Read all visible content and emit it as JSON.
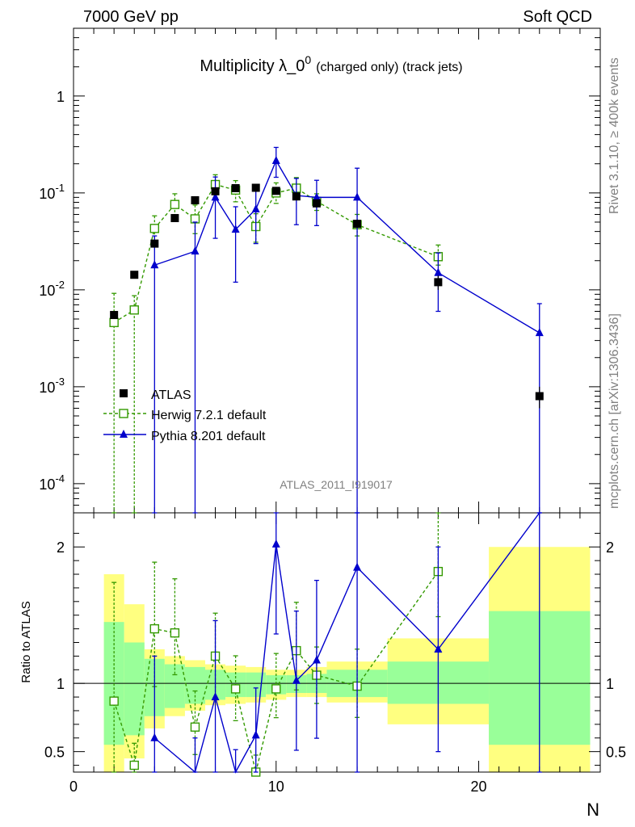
{
  "header": {
    "left": "7000 GeV pp",
    "right": "Soft QCD"
  },
  "side_labels": {
    "top": "Rivet 3.1.10, ≥ 400k events",
    "bottom": "mcplots.cern.ch [arXiv:1306.3436]"
  },
  "chart_data": {
    "type": "scatter",
    "title": "Multiplicity λ_0",
    "title_superscript": "0",
    "title_suffix": "(charged only) (track jets)",
    "watermark": "ATLAS_2011_I919017",
    "xlabel": "N",
    "ylabel_ratio": "Ratio to ATLAS",
    "xlim": [
      0,
      26
    ],
    "ylim_main": [
      5e-05,
      5
    ],
    "ylim_ratio": [
      0.35,
      2.25
    ],
    "log_y_main": true,
    "x_ticks": [
      "0",
      "10",
      "20"
    ],
    "y_ticks_main": [
      "10",
      "10",
      "10",
      "10",
      "1"
    ],
    "y_ticks_main_exponents": [
      "-4",
      "-3",
      "-2",
      "-1",
      ""
    ],
    "y_ticks_ratio": [
      "0.5",
      "1",
      "2"
    ],
    "legend_position": "lower-left",
    "series": [
      {
        "name": "ATLAS",
        "style": "data",
        "color": "#000000",
        "x": [
          2,
          3,
          4,
          5,
          6,
          7,
          8,
          9,
          10,
          11,
          12,
          14,
          18,
          23
        ],
        "y": [
          0.0055,
          0.0143,
          0.03,
          0.055,
          0.084,
          0.104,
          0.112,
          0.113,
          0.105,
          0.092,
          0.078,
          0.048,
          0.012,
          0.0008
        ],
        "yerr": [
          0.0005,
          0.001,
          0.002,
          0.003,
          0.004,
          0.004,
          0.004,
          0.004,
          0.004,
          0.004,
          0.004,
          0.003,
          0.002,
          0.0002
        ]
      },
      {
        "name": "Herwig 7.2.1 default",
        "style": "dashed-open-square",
        "color": "#339900",
        "x": [
          2,
          3,
          4,
          5,
          6,
          7,
          8,
          9,
          10,
          11,
          12,
          14,
          18
        ],
        "y": [
          0.0046,
          0.0062,
          0.043,
          0.076,
          0.054,
          0.122,
          0.107,
          0.045,
          0.1,
          0.112,
          0.082,
          0.047,
          0.022
        ],
        "yerr_low": [
          0.0046,
          0.0062,
          0.013,
          0.017,
          0.016,
          0.032,
          0.026,
          0.014,
          0.022,
          0.026,
          0.016,
          0.011,
          0.004
        ],
        "yerr_high": [
          0.0046,
          0.0025,
          0.015,
          0.022,
          0.021,
          0.032,
          0.027,
          0.016,
          0.027,
          0.032,
          0.016,
          0.013,
          0.007
        ],
        "ratio": [
          0.87,
          0.4,
          1.4,
          1.37,
          0.68,
          1.2,
          0.96,
          0.35,
          0.96,
          1.24,
          1.06,
          0.98,
          1.82
        ]
      },
      {
        "name": "Pythia 8.201 default",
        "style": "solid-filled-triangle",
        "color": "#0000cc",
        "x": [
          4,
          6,
          7,
          8,
          9,
          10,
          11,
          12,
          14,
          18,
          23
        ],
        "y": [
          0.018,
          0.025,
          0.09,
          0.042,
          0.068,
          0.215,
          0.094,
          0.09,
          0.09,
          0.015,
          0.0036
        ],
        "yerr_low": [
          0.018,
          0.025,
          0.056,
          0.03,
          0.038,
          0.07,
          0.047,
          0.044,
          0.09,
          0.009,
          0.0036
        ],
        "yerr_high": [
          0.018,
          0.025,
          0.056,
          0.03,
          0.038,
          0.08,
          0.047,
          0.045,
          0.09,
          0.009,
          0.0036
        ],
        "ratio": [
          0.6,
          0.3,
          0.9,
          0.3,
          0.62,
          2.02,
          1.02,
          1.17,
          1.85,
          1.25,
          3.0
        ]
      }
    ],
    "ratio_bands": {
      "edges": [
        1.5,
        2.5,
        3.5,
        4.5,
        5.5,
        6.5,
        7.5,
        8.5,
        9.5,
        10.5,
        11.5,
        12.5,
        15.5,
        20.5,
        25.5
      ],
      "inner_low": [
        0.55,
        0.62,
        0.76,
        0.82,
        0.85,
        0.88,
        0.9,
        0.9,
        0.92,
        0.93,
        0.93,
        0.9,
        0.85,
        0.55
      ],
      "inner_high": [
        1.45,
        1.3,
        1.18,
        1.14,
        1.12,
        1.1,
        1.08,
        1.08,
        1.06,
        1.06,
        1.07,
        1.1,
        1.16,
        1.53
      ],
      "outer_low": [
        0.35,
        0.45,
        0.67,
        0.76,
        0.8,
        0.84,
        0.85,
        0.86,
        0.88,
        0.9,
        0.9,
        0.86,
        0.7,
        0.35
      ],
      "outer_high": [
        1.8,
        1.58,
        1.25,
        1.2,
        1.17,
        1.14,
        1.13,
        1.12,
        1.1,
        1.1,
        1.12,
        1.16,
        1.33,
        2.0
      ],
      "inner_color": "#99ff99",
      "outer_color": "#ffff80"
    }
  }
}
